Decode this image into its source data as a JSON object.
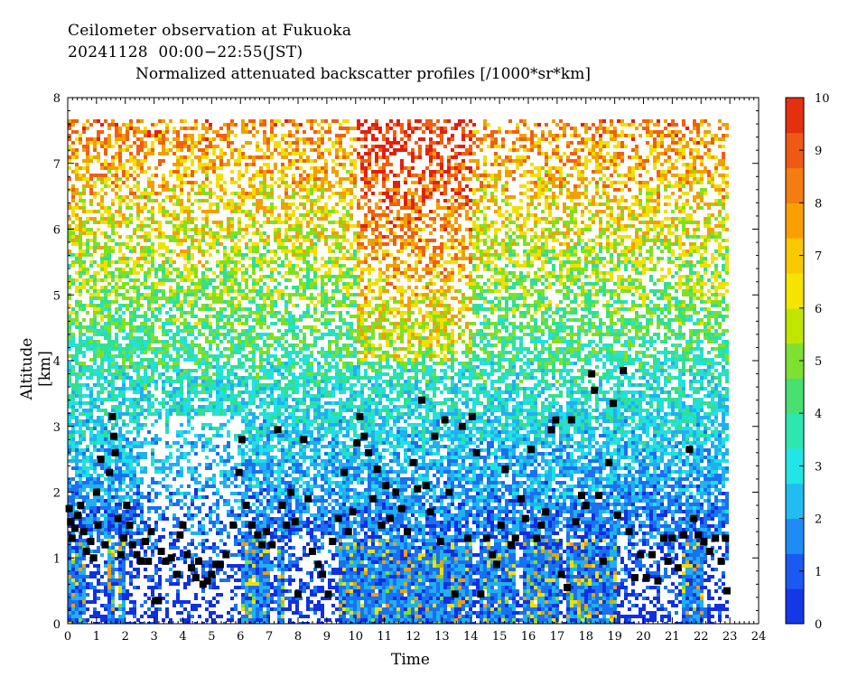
{
  "header": {
    "line1": "Ceilometer observation at Fukuoka",
    "line2": "20241128  00:00−22:55(JST)",
    "line3": "Normalized attenuated backscatter profiles [/1000*sr*km]"
  },
  "chart_data": {
    "type": "heatmap",
    "title": "Normalized attenuated backscatter profiles [/1000*sr*km]",
    "xlabel": "Time",
    "ylabel": "Altitude [km]",
    "xlim": [
      0,
      24
    ],
    "ylim": [
      0,
      8
    ],
    "x_ticks": [
      "0",
      "1",
      "2",
      "3",
      "4",
      "5",
      "6",
      "7",
      "8",
      "9",
      "10",
      "11",
      "12",
      "13",
      "14",
      "15",
      "16",
      "17",
      "18",
      "19",
      "20",
      "21",
      "22",
      "23",
      "24"
    ],
    "y_ticks": [
      "0",
      "1",
      "2",
      "3",
      "4",
      "5",
      "6",
      "7",
      "8"
    ],
    "data_time_range": [
      0,
      22.92
    ],
    "data_altitude_top": 7.67,
    "colorbar": {
      "range": [
        0,
        10
      ],
      "ticks": [
        "0",
        "1",
        "2",
        "3",
        "4",
        "5",
        "6",
        "7",
        "8",
        "9",
        "10"
      ],
      "colors": [
        "#1030e0",
        "#1a70f0",
        "#20b0f0",
        "#20e0e0",
        "#30e090",
        "#80e020",
        "#f0e000",
        "#f0a000",
        "#f06010",
        "#e02010"
      ]
    },
    "cloud_base_markers": [
      [
        0.05,
        1.75
      ],
      [
        0.1,
        1.55
      ],
      [
        0.15,
        1.3
      ],
      [
        0.25,
        1.45
      ],
      [
        0.35,
        1.65
      ],
      [
        0.45,
        1.8
      ],
      [
        0.55,
        1.4
      ],
      [
        0.65,
        1.1
      ],
      [
        0.8,
        1.25
      ],
      [
        0.9,
        1.0
      ],
      [
        1.0,
        2.0
      ],
      [
        1.05,
        1.5
      ],
      [
        1.15,
        2.5
      ],
      [
        1.3,
        1.2
      ],
      [
        1.45,
        2.3
      ],
      [
        1.55,
        3.15
      ],
      [
        1.6,
        2.85
      ],
      [
        1.65,
        2.6
      ],
      [
        1.75,
        1.6
      ],
      [
        1.85,
        1.05
      ],
      [
        1.95,
        1.3
      ],
      [
        2.05,
        1.8
      ],
      [
        2.15,
        1.5
      ],
      [
        2.25,
        1.2
      ],
      [
        2.4,
        1.05
      ],
      [
        2.55,
        0.95
      ],
      [
        2.7,
        1.25
      ],
      [
        2.8,
        0.95
      ],
      [
        2.9,
        1.4
      ],
      [
        3.05,
        0.35
      ],
      [
        3.15,
        0.35
      ],
      [
        3.25,
        1.1
      ],
      [
        3.4,
        0.95
      ],
      [
        3.6,
        1.0
      ],
      [
        3.8,
        0.75
      ],
      [
        3.9,
        1.35
      ],
      [
        4.0,
        1.5
      ],
      [
        4.15,
        1.05
      ],
      [
        4.3,
        0.85
      ],
      [
        4.45,
        0.7
      ],
      [
        4.55,
        0.95
      ],
      [
        4.7,
        0.6
      ],
      [
        4.85,
        0.65
      ],
      [
        5.0,
        0.75
      ],
      [
        5.15,
        0.9
      ],
      [
        5.3,
        0.9
      ],
      [
        5.5,
        1.05
      ],
      [
        5.75,
        1.5
      ],
      [
        5.95,
        2.3
      ],
      [
        6.05,
        2.8
      ],
      [
        6.2,
        1.8
      ],
      [
        6.4,
        1.5
      ],
      [
        6.6,
        1.35
      ],
      [
        6.75,
        1.2
      ],
      [
        6.9,
        1.4
      ],
      [
        7.1,
        1.2
      ],
      [
        7.3,
        2.95
      ],
      [
        7.45,
        1.8
      ],
      [
        7.6,
        1.5
      ],
      [
        7.75,
        2.0
      ],
      [
        7.9,
        1.55
      ],
      [
        8.0,
        0.45
      ],
      [
        8.2,
        2.8
      ],
      [
        8.35,
        1.9
      ],
      [
        8.5,
        1.1
      ],
      [
        8.7,
        0.9
      ],
      [
        8.85,
        0.75
      ],
      [
        9.05,
        0.45
      ],
      [
        9.2,
        1.25
      ],
      [
        9.4,
        1.6
      ],
      [
        9.6,
        2.3
      ],
      [
        9.75,
        1.4
      ],
      [
        9.9,
        1.7
      ],
      [
        10.05,
        2.75
      ],
      [
        10.15,
        3.15
      ],
      [
        10.3,
        2.85
      ],
      [
        10.45,
        2.6
      ],
      [
        10.6,
        1.9
      ],
      [
        10.75,
        2.35
      ],
      [
        10.9,
        1.5
      ],
      [
        11.05,
        2.1
      ],
      [
        11.2,
        1.6
      ],
      [
        11.4,
        2.0
      ],
      [
        11.6,
        1.75
      ],
      [
        11.8,
        1.4
      ],
      [
        12.0,
        2.45
      ],
      [
        12.15,
        2.05
      ],
      [
        12.3,
        3.4
      ],
      [
        12.45,
        2.1
      ],
      [
        12.6,
        1.7
      ],
      [
        12.75,
        2.85
      ],
      [
        12.95,
        1.25
      ],
      [
        13.1,
        3.1
      ],
      [
        13.25,
        2.0
      ],
      [
        13.45,
        0.45
      ],
      [
        13.7,
        3.0
      ],
      [
        13.9,
        1.3
      ],
      [
        14.05,
        3.15
      ],
      [
        14.2,
        2.6
      ],
      [
        14.35,
        0.45
      ],
      [
        14.55,
        1.3
      ],
      [
        14.75,
        1.05
      ],
      [
        14.9,
        0.9
      ],
      [
        15.05,
        1.5
      ],
      [
        15.2,
        2.35
      ],
      [
        15.4,
        1.2
      ],
      [
        15.55,
        1.3
      ],
      [
        15.75,
        1.9
      ],
      [
        15.9,
        1.6
      ],
      [
        16.1,
        2.65
      ],
      [
        16.3,
        1.3
      ],
      [
        16.45,
        1.5
      ],
      [
        16.6,
        1.7
      ],
      [
        16.8,
        2.95
      ],
      [
        16.95,
        3.1
      ],
      [
        17.15,
        0.75
      ],
      [
        17.35,
        0.55
      ],
      [
        17.5,
        3.1
      ],
      [
        17.65,
        1.55
      ],
      [
        17.85,
        1.95
      ],
      [
        18.0,
        1.8
      ],
      [
        18.2,
        3.8
      ],
      [
        18.3,
        3.55
      ],
      [
        18.45,
        1.95
      ],
      [
        18.6,
        0.95
      ],
      [
        18.8,
        2.45
      ],
      [
        18.95,
        3.35
      ],
      [
        19.1,
        1.65
      ],
      [
        19.3,
        3.85
      ],
      [
        19.5,
        1.4
      ],
      [
        19.7,
        0.7
      ],
      [
        19.9,
        1.05
      ],
      [
        20.1,
        0.7
      ],
      [
        20.3,
        1.05
      ],
      [
        20.5,
        0.65
      ],
      [
        20.7,
        1.3
      ],
      [
        20.85,
        0.95
      ],
      [
        21.0,
        1.3
      ],
      [
        21.2,
        0.85
      ],
      [
        21.4,
        1.35
      ],
      [
        21.6,
        2.65
      ],
      [
        21.75,
        1.6
      ],
      [
        21.9,
        1.35
      ],
      [
        22.1,
        1.25
      ],
      [
        22.3,
        1.1
      ],
      [
        22.5,
        1.3
      ],
      [
        22.7,
        0.95
      ],
      [
        22.85,
        1.3
      ],
      [
        22.9,
        0.5
      ]
    ]
  }
}
